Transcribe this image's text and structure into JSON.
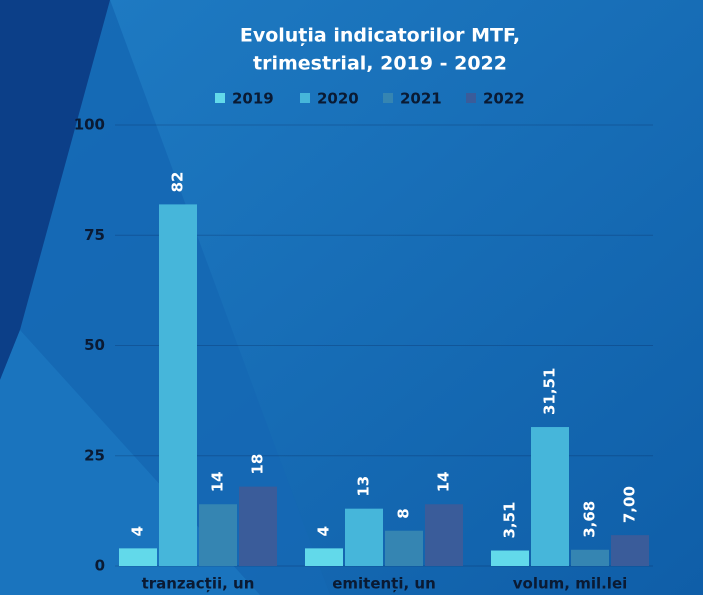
{
  "chart_data": {
    "type": "bar",
    "title": [
      "Evoluția indicatorilor MTF,",
      "trimestrial, 2019 - 2022"
    ],
    "categories": [
      "tranzacții, un",
      "emitenți, un",
      "volum, mil.lei"
    ],
    "series": [
      {
        "name": "2019",
        "color": "#62d9ea",
        "values": [
          4,
          4,
          3.51
        ],
        "value_labels": [
          "4",
          "4",
          "3,51"
        ]
      },
      {
        "name": "2020",
        "color": "#46b6da",
        "values": [
          82,
          13,
          31.51
        ],
        "value_labels": [
          "82",
          "13",
          "31,51"
        ]
      },
      {
        "name": "2021",
        "color": "#3585b2",
        "values": [
          14,
          8,
          3.68
        ],
        "value_labels": [
          "14",
          "8",
          "3,68"
        ]
      },
      {
        "name": "2022",
        "color": "#3a5c9a",
        "values": [
          18,
          14,
          7.0
        ],
        "value_labels": [
          "18",
          "14",
          "7,00"
        ]
      }
    ],
    "ylim": [
      0,
      100
    ],
    "yticks": [
      0,
      25,
      50,
      75,
      100
    ],
    "grid": true
  }
}
